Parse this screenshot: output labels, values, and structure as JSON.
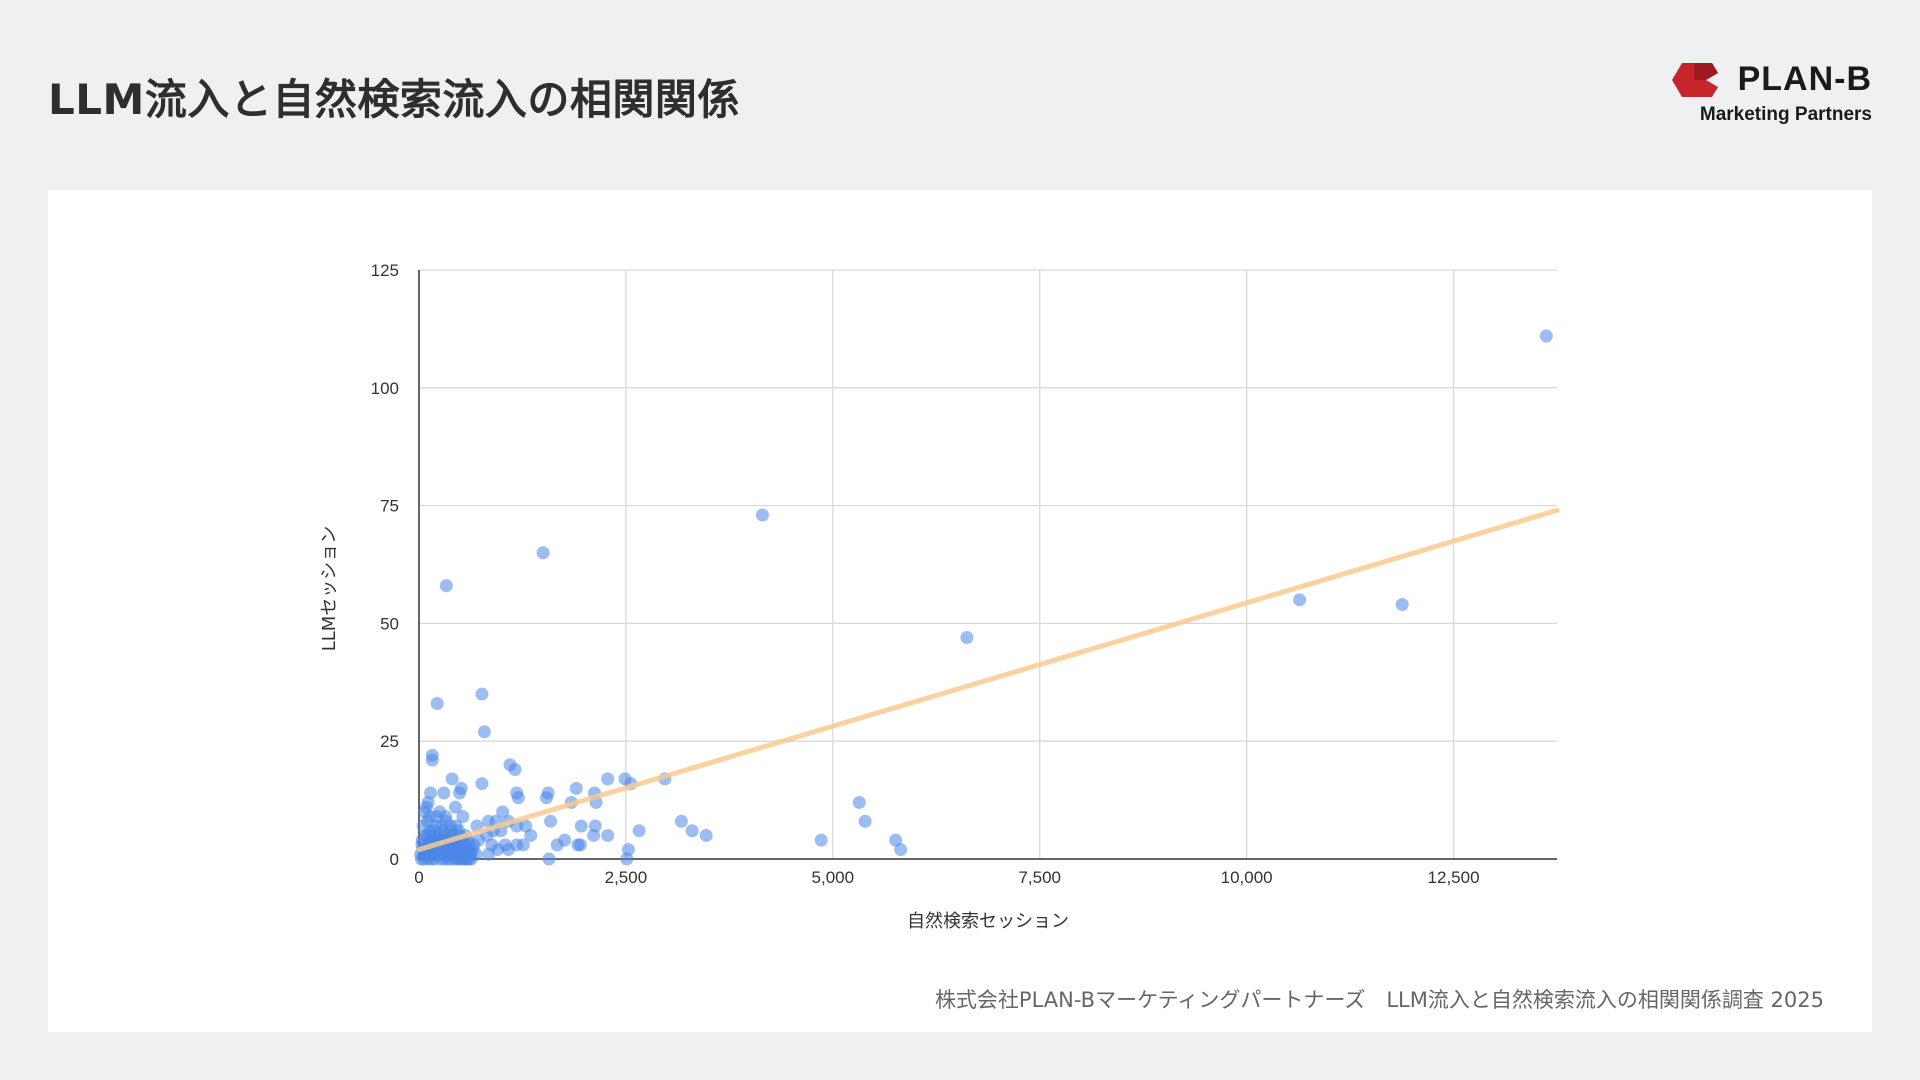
{
  "header": {
    "title": "LLM流入と自然検索流入の相関関係",
    "brand_name": "PLAN-B",
    "brand_tagline": "Marketing Partners",
    "brand_color": "#c8242b"
  },
  "caption": "株式会社PLAN-Bマーケティングパートナーズ　LLM流入と自然検索流入の相関関係調査 2025",
  "chart_data": {
    "type": "scatter",
    "title": "",
    "xlabel": "自然検索セッション",
    "ylabel": "LLMセッション",
    "xlim": [
      0,
      13750
    ],
    "ylim": [
      0,
      125
    ],
    "x_ticks": [
      0,
      2500,
      5000,
      7500,
      10000,
      12500
    ],
    "x_tick_labels": [
      "0",
      "2,500",
      "5,000",
      "7,500",
      "10,000",
      "12,500"
    ],
    "y_ticks": [
      0,
      25,
      50,
      75,
      100,
      125
    ],
    "y_tick_labels": [
      "0",
      "25",
      "50",
      "75",
      "100",
      "125"
    ],
    "grid": true,
    "point_color": "#4a86e8",
    "trendline_color": "#f9cb8f",
    "trendline": {
      "x": [
        0,
        13750
      ],
      "y": [
        2,
        74
      ]
    },
    "points": [
      [
        13620,
        111
      ],
      [
        4150,
        73
      ],
      [
        1500,
        65
      ],
      [
        330,
        58
      ],
      [
        6620,
        47
      ],
      [
        10640,
        55
      ],
      [
        11880,
        54
      ],
      [
        220,
        33
      ],
      [
        760,
        35
      ],
      [
        790,
        27
      ],
      [
        160,
        22
      ],
      [
        160,
        21
      ],
      [
        1100,
        20
      ],
      [
        1160,
        19
      ],
      [
        2280,
        17
      ],
      [
        2490,
        17
      ],
      [
        2560,
        16
      ],
      [
        2970,
        17
      ],
      [
        400,
        17
      ],
      [
        760,
        16
      ],
      [
        510,
        15
      ],
      [
        1900,
        15
      ],
      [
        1180,
        14
      ],
      [
        1560,
        14
      ],
      [
        2120,
        14
      ],
      [
        490,
        14
      ],
      [
        300,
        14
      ],
      [
        140,
        14
      ],
      [
        1200,
        13
      ],
      [
        1540,
        13
      ],
      [
        1840,
        12
      ],
      [
        2140,
        12
      ],
      [
        5320,
        12
      ],
      [
        440,
        11
      ],
      [
        1010,
        10
      ],
      [
        250,
        10
      ],
      [
        90,
        11
      ],
      [
        530,
        9
      ],
      [
        1590,
        8
      ],
      [
        3170,
        8
      ],
      [
        5390,
        8
      ],
      [
        840,
        8
      ],
      [
        930,
        8
      ],
      [
        1080,
        8
      ],
      [
        700,
        7
      ],
      [
        1290,
        7
      ],
      [
        1960,
        7
      ],
      [
        2130,
        7
      ],
      [
        1180,
        7
      ],
      [
        2660,
        6
      ],
      [
        3300,
        6
      ],
      [
        3470,
        5
      ],
      [
        1350,
        5
      ],
      [
        2110,
        5
      ],
      [
        2280,
        5
      ],
      [
        820,
        5
      ],
      [
        900,
        6
      ],
      [
        990,
        6
      ],
      [
        4860,
        4
      ],
      [
        5760,
        4
      ],
      [
        1760,
        4
      ],
      [
        1260,
        3
      ],
      [
        1670,
        3
      ],
      [
        1920,
        3
      ],
      [
        1950,
        3
      ],
      [
        1180,
        3
      ],
      [
        1080,
        2
      ],
      [
        880,
        3
      ],
      [
        5820,
        2
      ],
      [
        2530,
        2
      ],
      [
        1570,
        0
      ],
      [
        2510,
        0
      ],
      [
        1040,
        3
      ],
      [
        950,
        2
      ],
      [
        840,
        1
      ],
      [
        720,
        4
      ],
      [
        650,
        2
      ],
      [
        60,
        2
      ],
      [
        80,
        5
      ],
      [
        100,
        8
      ],
      [
        120,
        3
      ],
      [
        140,
        6
      ],
      [
        160,
        1
      ],
      [
        180,
        4
      ],
      [
        200,
        7
      ],
      [
        220,
        2
      ],
      [
        240,
        5
      ],
      [
        260,
        0
      ],
      [
        280,
        3
      ],
      [
        300,
        6
      ],
      [
        320,
        9
      ],
      [
        340,
        1
      ],
      [
        360,
        4
      ],
      [
        380,
        7
      ],
      [
        400,
        2
      ],
      [
        420,
        5
      ],
      [
        440,
        0
      ],
      [
        460,
        3
      ],
      [
        480,
        6
      ],
      [
        500,
        1
      ],
      [
        520,
        4
      ],
      [
        540,
        2
      ],
      [
        560,
        5
      ],
      [
        580,
        0
      ],
      [
        600,
        3
      ],
      [
        620,
        1
      ],
      [
        30,
        0
      ],
      [
        40,
        4
      ],
      [
        50,
        7
      ],
      [
        70,
        10
      ],
      [
        90,
        1
      ],
      [
        110,
        12
      ],
      [
        130,
        9
      ],
      [
        150,
        0
      ],
      [
        170,
        3
      ],
      [
        190,
        6
      ],
      [
        210,
        9
      ],
      [
        230,
        1
      ],
      [
        250,
        4
      ],
      [
        270,
        7
      ],
      [
        290,
        2
      ],
      [
        310,
        5
      ],
      [
        330,
        8
      ],
      [
        350,
        0
      ],
      [
        370,
        3
      ],
      [
        390,
        6
      ],
      [
        410,
        1
      ],
      [
        430,
        4
      ],
      [
        450,
        7
      ],
      [
        470,
        2
      ],
      [
        490,
        5
      ],
      [
        510,
        3
      ],
      [
        530,
        0
      ],
      [
        550,
        3
      ],
      [
        570,
        1
      ],
      [
        590,
        4
      ],
      [
        610,
        2
      ],
      [
        630,
        0
      ],
      [
        660,
        3
      ],
      [
        690,
        1
      ],
      [
        45,
        2
      ],
      [
        65,
        1
      ],
      [
        85,
        3
      ],
      [
        105,
        0
      ],
      [
        125,
        2
      ],
      [
        145,
        4
      ],
      [
        165,
        2
      ],
      [
        185,
        0
      ],
      [
        205,
        3
      ],
      [
        225,
        1
      ],
      [
        245,
        2
      ],
      [
        265,
        4
      ],
      [
        285,
        1
      ],
      [
        305,
        0
      ],
      [
        325,
        2
      ],
      [
        345,
        3
      ],
      [
        365,
        1
      ],
      [
        385,
        0
      ],
      [
        405,
        2
      ],
      [
        425,
        1
      ],
      [
        445,
        3
      ],
      [
        465,
        0
      ],
      [
        485,
        2
      ],
      [
        505,
        1
      ],
      [
        525,
        2
      ],
      [
        545,
        0
      ],
      [
        565,
        1
      ],
      [
        585,
        2
      ],
      [
        605,
        0
      ],
      [
        625,
        1
      ],
      [
        20,
        1
      ],
      [
        35,
        3
      ],
      [
        55,
        0
      ],
      [
        75,
        2
      ],
      [
        95,
        5
      ],
      [
        115,
        1
      ],
      [
        135,
        3
      ],
      [
        155,
        5
      ],
      [
        175,
        2
      ],
      [
        195,
        1
      ],
      [
        215,
        4
      ],
      [
        235,
        3
      ],
      [
        255,
        1
      ],
      [
        275,
        2
      ],
      [
        295,
        4
      ],
      [
        315,
        1
      ],
      [
        335,
        3
      ],
      [
        355,
        2
      ],
      [
        375,
        5
      ],
      [
        395,
        1
      ],
      [
        415,
        3
      ],
      [
        435,
        2
      ],
      [
        455,
        1
      ],
      [
        475,
        3
      ],
      [
        495,
        0
      ]
    ]
  }
}
